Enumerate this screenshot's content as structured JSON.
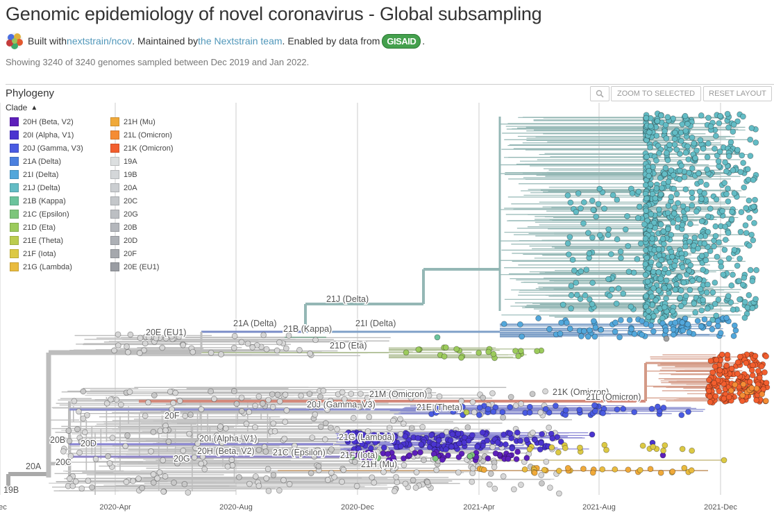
{
  "header": {
    "title": "Genomic epidemiology of novel coronavirus - Global subsampling",
    "built_with_prefix": "Built with ",
    "built_with_link": "nextstrain/ncov",
    "maintained_prefix": ". Maintained by ",
    "maintained_link": "the Nextstrain team",
    "enabled_prefix": ". Enabled by data from ",
    "gisaid_label": "GISAID",
    "suffix": ".",
    "summary": "Showing 3240 of 3240 genomes sampled between Dec 2019 and Jan 2022."
  },
  "panel": {
    "title": "Phylogeny",
    "zoom_label": "Zoom to Selected",
    "reset_label": "Reset Layout"
  },
  "legend": {
    "title": "Clade",
    "col1": [
      {
        "label": "20H (Beta, V2)",
        "color": "#5D1FBB"
      },
      {
        "label": "20I (Alpha, V1)",
        "color": "#4B35D0"
      },
      {
        "label": "20J (Gamma, V3)",
        "color": "#4A5BE2"
      },
      {
        "label": "21A (Delta)",
        "color": "#4B80DF"
      },
      {
        "label": "21I (Delta)",
        "color": "#52A7DB"
      },
      {
        "label": "21J (Delta)",
        "color": "#63BCC5"
      },
      {
        "label": "21B (Kappa)",
        "color": "#6BC39C"
      },
      {
        "label": "21C (Epsilon)",
        "color": "#7DC67B"
      },
      {
        "label": "21D (Eta)",
        "color": "#9CCB5C"
      },
      {
        "label": "21E (Theta)",
        "color": "#BBCC4F"
      },
      {
        "label": "21F (Iota)",
        "color": "#DCC944"
      },
      {
        "label": "21G (Lambda)",
        "color": "#E9BB3E"
      }
    ],
    "col2": [
      {
        "label": "21H (Mu)",
        "color": "#F0A939"
      },
      {
        "label": "21L (Omicron)",
        "color": "#F58C34"
      },
      {
        "label": "21K (Omicron)",
        "color": "#F25E2E"
      },
      {
        "label": "19A",
        "color": "#DCDFE0"
      },
      {
        "label": "19B",
        "color": "#D4D7D9"
      },
      {
        "label": "20A",
        "color": "#CBCED1"
      },
      {
        "label": "20C",
        "color": "#C4C7CA"
      },
      {
        "label": "20G",
        "color": "#BCBFC3"
      },
      {
        "label": "20B",
        "color": "#B4B7BC"
      },
      {
        "label": "20D",
        "color": "#ADB0B5"
      },
      {
        "label": "20F",
        "color": "#A5A8AD"
      },
      {
        "label": "20E (EU1)",
        "color": "#9A9DA3"
      }
    ]
  },
  "tree": {
    "x_ticks": [
      "Dec",
      "2020-Apr",
      "2020-Aug",
      "2020-Dec",
      "2021-Apr",
      "2021-Aug",
      "2021-Dec"
    ],
    "clade_labels": [
      {
        "text": "21J (Delta)",
        "color_key": "21J"
      },
      {
        "text": "21A (Delta)",
        "color_key": "21A"
      },
      {
        "text": "21B (Kappa)",
        "color_key": "21B"
      },
      {
        "text": "21I (Delta)",
        "color_key": "21I"
      },
      {
        "text": "20E (EU1)",
        "color_key": "20E"
      },
      {
        "text": "21D (Eta)",
        "color_key": "21D"
      },
      {
        "text": "21M (Omicron)",
        "color_key": "21M"
      },
      {
        "text": "21K (Omicron)",
        "color_key": "21K"
      },
      {
        "text": "21L (Omicron)",
        "color_key": "21L"
      },
      {
        "text": "20J (Gamma, V3)",
        "color_key": "20J"
      },
      {
        "text": "21E (Theta)",
        "color_key": "21E"
      },
      {
        "text": "20F",
        "color_key": "20F"
      },
      {
        "text": "20B",
        "color_key": "20B"
      },
      {
        "text": "20D",
        "color_key": "20D"
      },
      {
        "text": "20I (Alpha, V1)",
        "color_key": "20I"
      },
      {
        "text": "20H (Beta, V2)",
        "color_key": "20H"
      },
      {
        "text": "21C (Epsilon)",
        "color_key": "21C"
      },
      {
        "text": "21F (Iota)",
        "color_key": "21F"
      },
      {
        "text": "20G",
        "color_key": "20G"
      },
      {
        "text": "20C",
        "color_key": "20C"
      },
      {
        "text": "21G (Lambda)",
        "color_key": "21G"
      },
      {
        "text": "21H (Mu)",
        "color_key": "21H"
      },
      {
        "text": "20A",
        "color_key": "20A"
      },
      {
        "text": "19B",
        "color_key": "19B"
      }
    ]
  }
}
